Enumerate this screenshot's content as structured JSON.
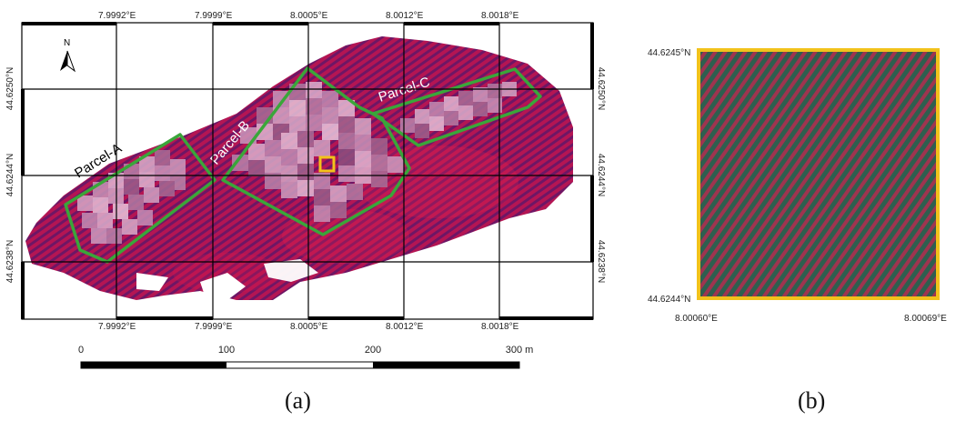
{
  "panel_a": {
    "top_lon_labels": [
      "7.9992°E",
      "7.9999°E",
      "8.0005°E",
      "8.0012°E",
      "8.0018°E"
    ],
    "bottom_lon_labels": [
      "7.9992°E",
      "7.9999°E",
      "8.0005°E",
      "8.0012°E",
      "8.0018°E"
    ],
    "left_lat_labels": [
      "44.6250°N",
      "44.6244°N",
      "44.6238°N"
    ],
    "right_lat_labels": [
      "44.6250°N",
      "44.6244°N",
      "44.6238°N"
    ],
    "north_arrow_label": "N",
    "parcels": [
      "Parcel-A",
      "Parcel-B",
      "Parcel-C"
    ],
    "scale_bar": {
      "ticks": [
        "0",
        "100",
        "200",
        "300 m"
      ]
    },
    "caption": "(a)"
  },
  "panel_b": {
    "lat_top": "44.6245°N",
    "lat_bottom": "44.6244°N",
    "lon_left": "8.00060°E",
    "lon_right": "8.00069°E",
    "caption": "(b)"
  },
  "colors": {
    "parcel_outline": "#3aa63a",
    "highlight_box": "#f2c21b",
    "vegetation": "#c8204a",
    "canopy_rows": "#7a1fa0"
  }
}
